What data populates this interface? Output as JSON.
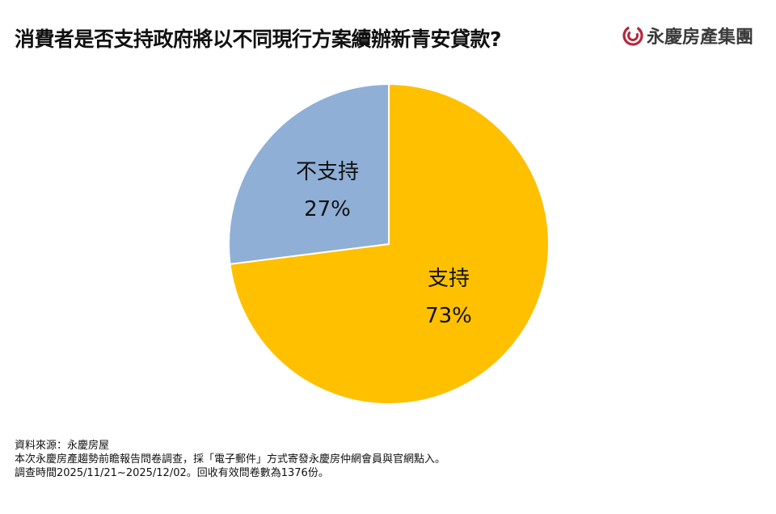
{
  "header": {
    "title": "消費者是否支持政府將以不同現行方案續辦新青安貸款?",
    "logo_text": "永慶房產集團",
    "logo_icon": "brand-swirl-icon",
    "brand_color": "#b5283c"
  },
  "chart_data": {
    "type": "pie",
    "title": "消費者是否支持政府將以不同現行方案續辦新青安貸款?",
    "categories": [
      "支持",
      "不支持"
    ],
    "values": [
      73,
      27
    ],
    "unit": "%",
    "colors": [
      "#FFC000",
      "#8FAFD6"
    ],
    "start_angle_deg": 0,
    "direction": "clockwise",
    "labels": [
      {
        "name": "支持",
        "value": "73%"
      },
      {
        "name": "不支持",
        "value": "27%"
      }
    ],
    "legend": "none"
  },
  "footer": {
    "source": "資料來源：永慶房屋",
    "method": "本次永慶房產趨勢前瞻報告問卷調查，採「電子郵件」方式寄發永慶房仲網會員與官網點入。",
    "period": "調查時間2025/11/21~2025/12/02。回收有效問卷數為1376份。"
  }
}
